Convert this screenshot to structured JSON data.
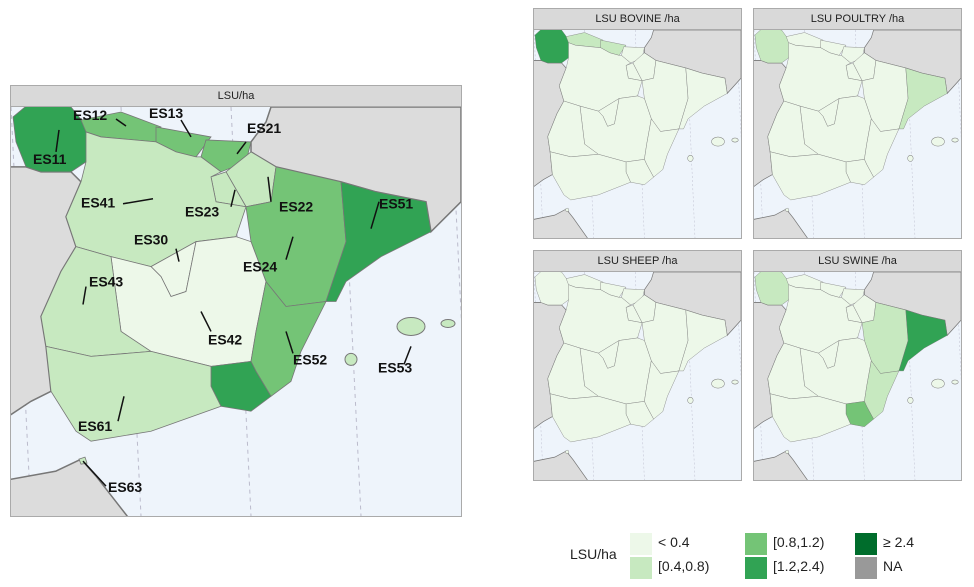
{
  "main_map": {
    "title": "LSU/ha"
  },
  "small_maps": [
    {
      "title": "LSU BOVINE /ha",
      "classes": {
        "ES11": 3,
        "ES12": 1,
        "ES13": 1
      }
    },
    {
      "title": "LSU POULTRY /ha",
      "classes": {
        "ES11": 1,
        "ES51": 1
      }
    },
    {
      "title": "LSU SHEEP /ha",
      "classes": {}
    },
    {
      "title": "LSU SWINE /ha",
      "classes": {
        "ES11": 1,
        "ES51": 3,
        "ES24": 1,
        "ES52": 1,
        "ES62": 2
      }
    }
  ],
  "main_classes": {
    "ES11": 3,
    "ES12": 2,
    "ES13": 2,
    "ES21": 2,
    "ES22": 1,
    "ES23": 1,
    "ES24": 2,
    "ES30": 0,
    "ES41": 1,
    "ES42": 0,
    "ES43": 1,
    "ES51": 3,
    "ES52": 2,
    "ES53": 1,
    "ES61": 1,
    "ES62": 3,
    "ES63": 1
  },
  "region_labels": [
    "ES11",
    "ES12",
    "ES13",
    "ES21",
    "ES22",
    "ES23",
    "ES24",
    "ES30",
    "ES41",
    "ES42",
    "ES43",
    "ES51",
    "ES52",
    "ES53",
    "ES61",
    "ES63"
  ],
  "legend": {
    "title": "LSU/ha",
    "items": [
      {
        "label": "< 0.4",
        "color": "#edf8e9"
      },
      {
        "label": "[0.4,0.8)",
        "color": "#c7e9c0"
      },
      {
        "label": "[0.8,1.2)",
        "color": "#74c476"
      },
      {
        "label": "[1.2,2.4)",
        "color": "#31a354"
      },
      {
        "label": "≥ 2.4",
        "color": "#006d2c"
      },
      {
        "label": "NA",
        "color": "#999999"
      }
    ]
  }
}
